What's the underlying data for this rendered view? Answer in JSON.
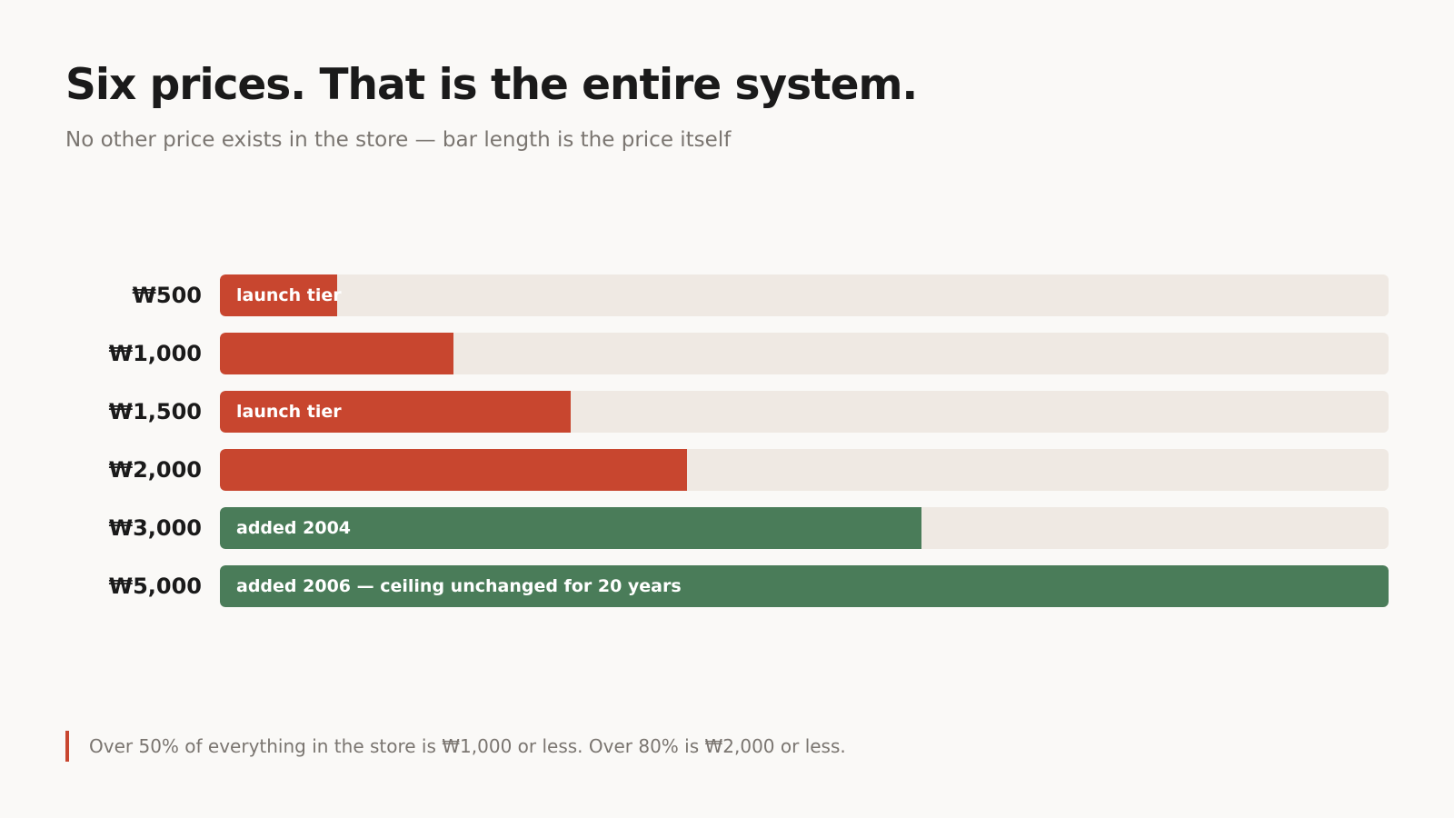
{
  "title": "Six prices. That is the entire system.",
  "subtitle": "No other price exists in the store — bar length is the price itself",
  "footnote": "Over 50% of everything in the store is ₩1,000 or less. Over 80% is ₩2,000 or less.",
  "colors": {
    "background": "#faf9f7",
    "track": "#efe9e3",
    "red": "#c8462f",
    "green": "#4a7c59",
    "title": "#1a1a1a",
    "muted": "#7a7570"
  },
  "chart_data": {
    "type": "bar",
    "orientation": "horizontal",
    "max": 5000,
    "xlim": [
      0,
      5000
    ],
    "grid": false,
    "categories": [
      "₩500",
      "₩1,000",
      "₩1,500",
      "₩2,000",
      "₩3,000",
      "₩5,000"
    ],
    "values": [
      500,
      1000,
      1500,
      2000,
      3000,
      5000
    ],
    "annotations": [
      "launch tier",
      "",
      "launch tier",
      "",
      "added 2004",
      "added 2006 — ceiling unchanged for 20 years"
    ],
    "bar_colors": [
      "#c8462f",
      "#c8462f",
      "#c8462f",
      "#c8462f",
      "#4a7c59",
      "#4a7c59"
    ]
  }
}
